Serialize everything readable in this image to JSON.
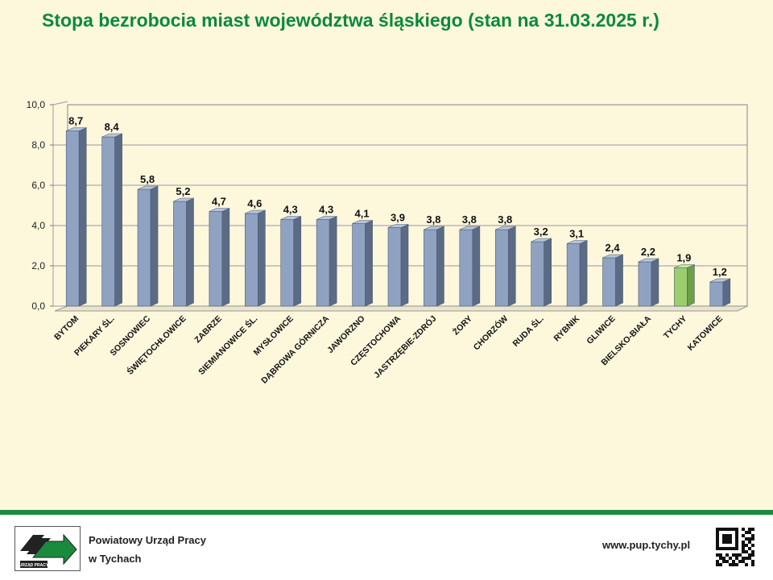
{
  "title": "Stopa bezrobocia miast województwa śląskiego (stan na 31.03.2025 r.)",
  "footer": {
    "org_line1": "Powiatowy Urząd Pracy",
    "org_line2": "w Tychach",
    "logo_text": "URZĄD PRACY",
    "url": "www.pup.tychy.pl"
  },
  "colors": {
    "bar": "#8fa2c2",
    "bar_highlight": "#9bcf6e",
    "title": "#0a8a3c",
    "footer_bar": "#1a8a3c"
  },
  "chart_data": {
    "type": "bar",
    "title": "Stopa bezrobocia miast województwa śląskiego (stan na 31.03.2025 r.)",
    "categories": [
      "BYTOM",
      "PIEKARY ŚL.",
      "SOSNOWIEC",
      "ŚWIĘTOCHŁOWICE",
      "ZABRZE",
      "SIEMIANOWICE ŚL.",
      "MYSŁOWICE",
      "DĄBROWA GÓRNICZA",
      "JAWORZNO",
      "CZĘSTOCHOWA",
      "JASTRZĘBIE-ZDRÓJ",
      "ŻORY",
      "CHORZÓW",
      "RUDA ŚL.",
      "RYBNIK",
      "GLIWICE",
      "BIELSKO-BIAŁA",
      "TYCHY",
      "KATOWICE"
    ],
    "values": [
      8.7,
      8.4,
      5.8,
      5.2,
      4.7,
      4.6,
      4.3,
      4.3,
      4.1,
      3.9,
      3.8,
      3.8,
      3.8,
      3.2,
      3.1,
      2.4,
      2.2,
      1.9,
      1.2
    ],
    "value_labels": [
      "8,7",
      "8,4",
      "5,8",
      "5,2",
      "4,7",
      "4,6",
      "4,3",
      "4,3",
      "4,1",
      "3,9",
      "3,8",
      "3,8",
      "3,8",
      "3,2",
      "3,1",
      "2,4",
      "2,2",
      "1,9",
      "1,2"
    ],
    "highlight": "TYCHY",
    "ylim": [
      0,
      10
    ],
    "yticks": [
      "0,0",
      "2,0",
      "4,0",
      "6,0",
      "8,0",
      "10,0"
    ],
    "grid": true,
    "xlabel": "",
    "ylabel": ""
  }
}
